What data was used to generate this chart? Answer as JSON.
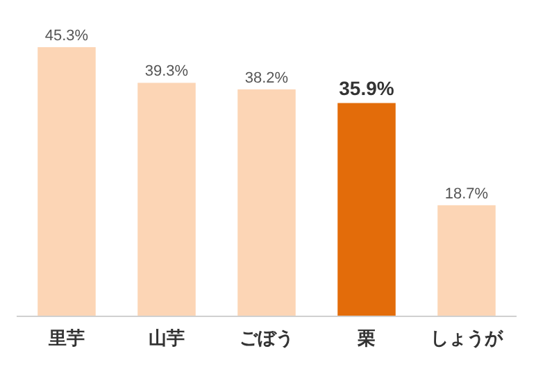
{
  "chart_data": {
    "type": "bar",
    "categories": [
      "里芋",
      "山芋",
      "ごぼう",
      "栗",
      "しょうが"
    ],
    "values": [
      45.3,
      39.3,
      38.2,
      35.9,
      18.7
    ],
    "colors": [
      "#fcd5b5",
      "#fcd5b5",
      "#fcd5b5",
      "#e36c0a",
      "#fcd5b5"
    ],
    "value_labels": [
      "45.3%",
      "39.3%",
      "38.2%",
      "35.9%",
      "18.7%"
    ]
  }
}
